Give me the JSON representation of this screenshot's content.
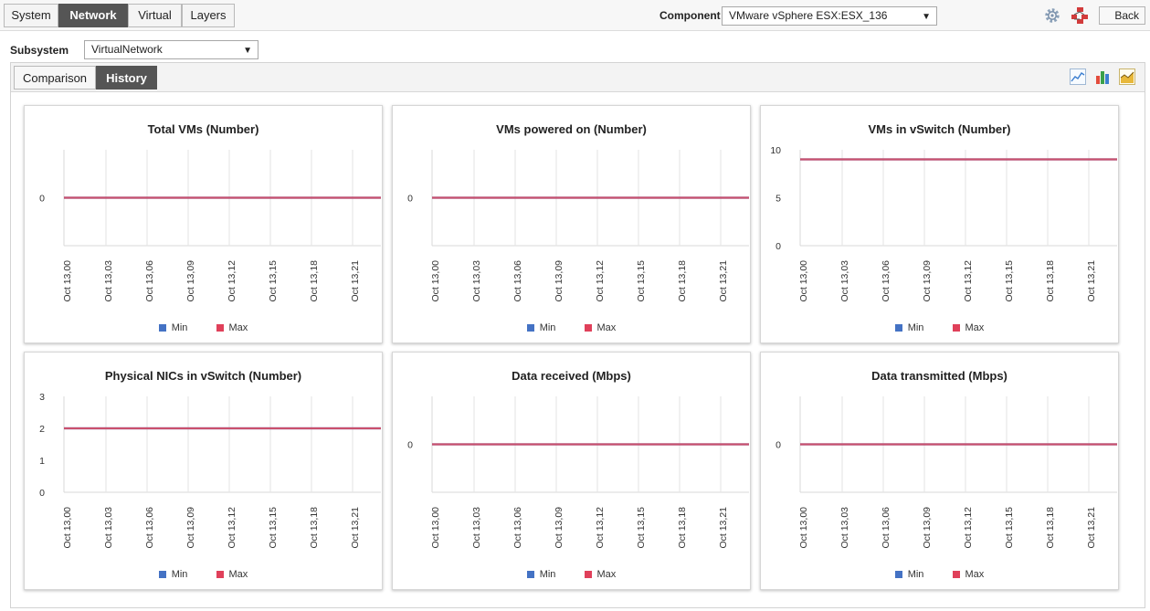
{
  "tabs": [
    "System",
    "Network",
    "Virtual",
    "Layers"
  ],
  "active_tab": "Network",
  "component": {
    "label": "Component",
    "value": "VMware vSphere ESX:ESX_136"
  },
  "back_label": "Back",
  "subsystem": {
    "label": "Subsystem",
    "value": "VirtualNetwork"
  },
  "subtabs": [
    "Comparison",
    "History"
  ],
  "active_subtab": "History",
  "colors": {
    "min": "#4472c4",
    "max": "#e0405a",
    "line": "#c9506d"
  },
  "icons": [
    "gear-icon",
    "network-alert-icon",
    "line-chart-icon",
    "bar-chart-icon",
    "area-chart-icon"
  ],
  "chart_data": [
    {
      "type": "line",
      "title": "Total VMs (Number)",
      "x": [
        "Oct 13,00",
        "Oct 13,03",
        "Oct 13,06",
        "Oct 13,09",
        "Oct 13,12",
        "Oct 13,15",
        "Oct 13,18",
        "Oct 13,21"
      ],
      "yticks": [
        "0"
      ],
      "ylim": [
        -1,
        1
      ],
      "series": [
        {
          "name": "Min",
          "values": [
            0,
            0,
            0,
            0,
            0,
            0,
            0,
            0
          ]
        },
        {
          "name": "Max",
          "values": [
            0,
            0,
            0,
            0,
            0,
            0,
            0,
            0
          ]
        }
      ]
    },
    {
      "type": "line",
      "title": "VMs powered on (Number)",
      "x": [
        "Oct 13,00",
        "Oct 13,03",
        "Oct 13,06",
        "Oct 13,09",
        "Oct 13,12",
        "Oct 13,15",
        "Oct 13,18",
        "Oct 13,21"
      ],
      "yticks": [
        "0"
      ],
      "ylim": [
        -1,
        1
      ],
      "series": [
        {
          "name": "Min",
          "values": [
            0,
            0,
            0,
            0,
            0,
            0,
            0,
            0
          ]
        },
        {
          "name": "Max",
          "values": [
            0,
            0,
            0,
            0,
            0,
            0,
            0,
            0
          ]
        }
      ]
    },
    {
      "type": "line",
      "title": "VMs in vSwitch (Number)",
      "x": [
        "Oct 13,00",
        "Oct 13,03",
        "Oct 13,06",
        "Oct 13,09",
        "Oct 13,12",
        "Oct 13,15",
        "Oct 13,18",
        "Oct 13,21"
      ],
      "yticks": [
        "0",
        "5",
        "10"
      ],
      "ylim": [
        0,
        10
      ],
      "series": [
        {
          "name": "Min",
          "values": [
            9,
            9,
            9,
            9,
            9,
            9,
            9,
            9
          ]
        },
        {
          "name": "Max",
          "values": [
            9,
            9,
            9,
            9,
            9,
            9,
            9,
            9
          ]
        }
      ]
    },
    {
      "type": "line",
      "title": "Physical NICs in vSwitch (Number)",
      "x": [
        "Oct 13,00",
        "Oct 13,03",
        "Oct 13,06",
        "Oct 13,09",
        "Oct 13,12",
        "Oct 13,15",
        "Oct 13,18",
        "Oct 13,21"
      ],
      "yticks": [
        "0",
        "1",
        "2",
        "3"
      ],
      "ylim": [
        0,
        3
      ],
      "series": [
        {
          "name": "Min",
          "values": [
            2,
            2,
            2,
            2,
            2,
            2,
            2,
            2
          ]
        },
        {
          "name": "Max",
          "values": [
            2,
            2,
            2,
            2,
            2,
            2,
            2,
            2
          ]
        }
      ]
    },
    {
      "type": "line",
      "title": "Data received (Mbps)",
      "x": [
        "Oct 13,00",
        "Oct 13,03",
        "Oct 13,06",
        "Oct 13,09",
        "Oct 13,12",
        "Oct 13,15",
        "Oct 13,18",
        "Oct 13,21"
      ],
      "yticks": [
        "0"
      ],
      "ylim": [
        -1,
        1
      ],
      "series": [
        {
          "name": "Min",
          "values": [
            0,
            0,
            0,
            0,
            0,
            0,
            0,
            0
          ]
        },
        {
          "name": "Max",
          "values": [
            0,
            0,
            0,
            0,
            0,
            0,
            0,
            0
          ]
        }
      ]
    },
    {
      "type": "line",
      "title": "Data transmitted (Mbps)",
      "x": [
        "Oct 13,00",
        "Oct 13,03",
        "Oct 13,06",
        "Oct 13,09",
        "Oct 13,12",
        "Oct 13,15",
        "Oct 13,18",
        "Oct 13,21"
      ],
      "yticks": [
        "0"
      ],
      "ylim": [
        -1,
        1
      ],
      "series": [
        {
          "name": "Min",
          "values": [
            0,
            0,
            0,
            0,
            0,
            0,
            0,
            0
          ]
        },
        {
          "name": "Max",
          "values": [
            0,
            0,
            0,
            0,
            0,
            0,
            0,
            0
          ]
        }
      ]
    }
  ]
}
